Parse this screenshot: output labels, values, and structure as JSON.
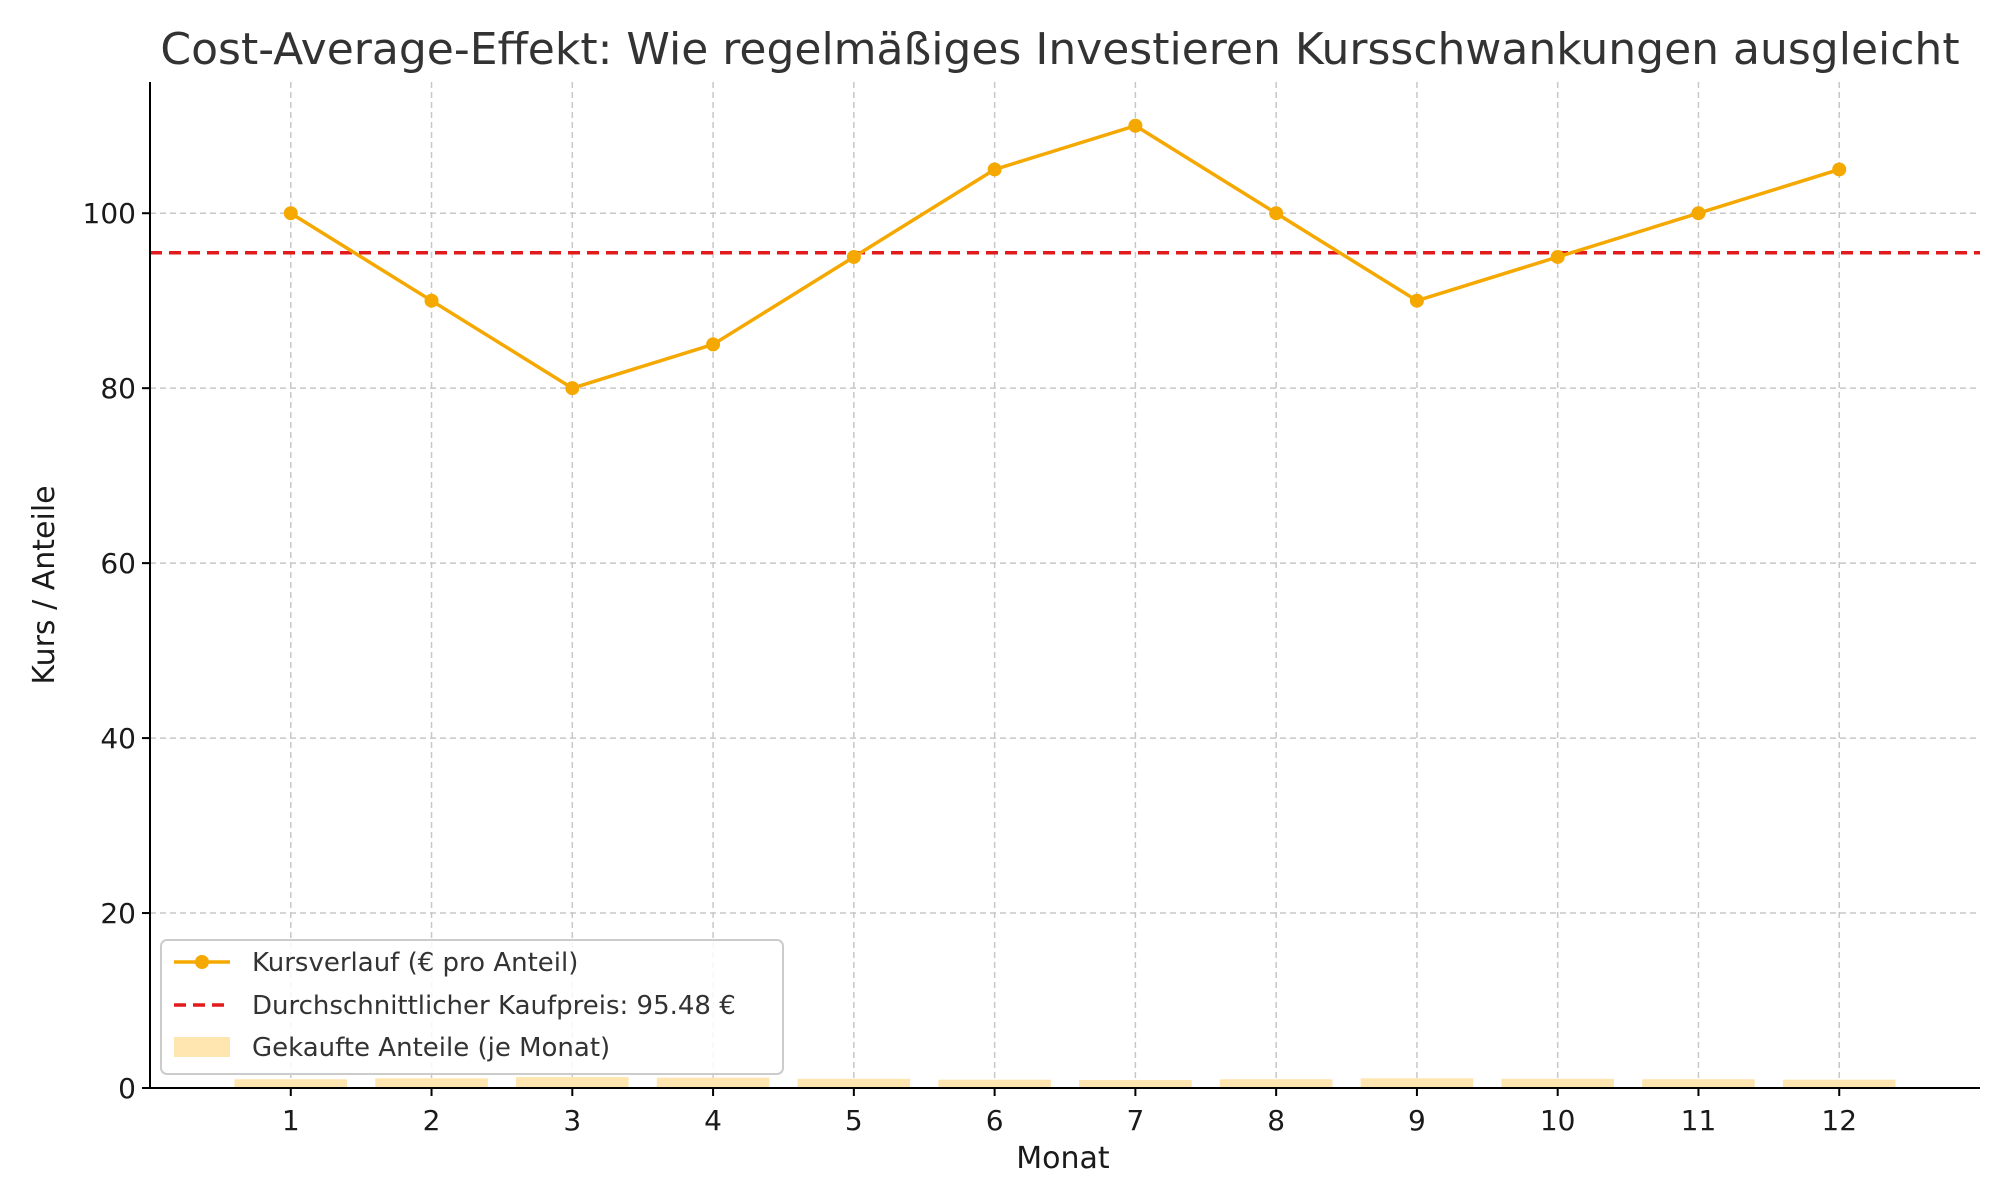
{
  "chart_data": {
    "type": "line",
    "title": "Cost-Average-Effekt: Wie regelmäßiges Investieren Kursschwankungen ausgleicht",
    "xlabel": "Monat",
    "ylabel": "Kurs / Anteile",
    "x": [
      1,
      2,
      3,
      4,
      5,
      6,
      7,
      8,
      9,
      10,
      11,
      12
    ],
    "xlim": [
      0,
      13
    ],
    "ylim": [
      0,
      110
    ],
    "yticks": [
      0,
      20,
      40,
      60,
      80,
      100
    ],
    "grid": true,
    "legend_position": "lower-left",
    "series": [
      {
        "name": "Kursverlauf (€ pro Anteil)",
        "type": "line",
        "color": "#f5a800",
        "marker": "circle",
        "values": [
          100,
          90,
          80,
          85,
          95,
          105,
          110,
          100,
          90,
          95,
          100,
          105
        ]
      },
      {
        "name": "Durchschnittlicher Kaufpreis: 95.48 €",
        "type": "hline",
        "color": "#e31a1c",
        "style": "dashed",
        "value": 95.48
      },
      {
        "name": "Gekaufte Anteile (je Monat)",
        "type": "bar",
        "color": "#ffe6b0",
        "values": [
          1.0,
          1.11,
          1.25,
          1.18,
          1.05,
          0.95,
          0.91,
          1.0,
          1.11,
          1.05,
          1.0,
          0.95
        ]
      }
    ]
  }
}
